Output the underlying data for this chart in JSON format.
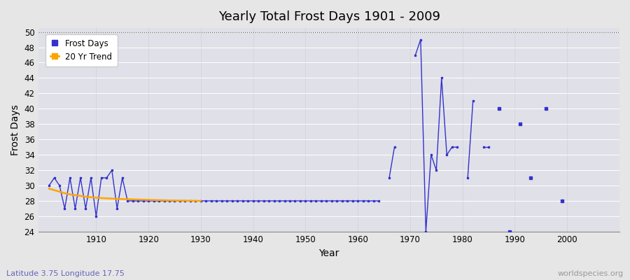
{
  "title": "Yearly Total Frost Days 1901 - 2009",
  "xlabel": "Year",
  "ylabel": "Frost Days",
  "xlim": [
    1899,
    2010
  ],
  "ylim": [
    24,
    50.5
  ],
  "yticks": [
    24,
    26,
    28,
    30,
    32,
    34,
    36,
    38,
    40,
    42,
    44,
    46,
    48,
    50
  ],
  "xticks": [
    1910,
    1920,
    1930,
    1940,
    1950,
    1960,
    1970,
    1980,
    1990,
    2000
  ],
  "background_color": "#e6e6e6",
  "plot_bg_color": "#e0e0e8",
  "grid_color": "#f0f0f0",
  "frost_color": "#3333cc",
  "trend_color": "#ffa500",
  "subtitle": "Latitude 3.75 Longitude 17.75",
  "watermark": "worldspecies.org",
  "frost_data": [
    [
      1901,
      30
    ],
    [
      1902,
      31
    ],
    [
      1903,
      30
    ],
    [
      1904,
      27
    ],
    [
      1905,
      31
    ],
    [
      1906,
      27
    ],
    [
      1907,
      31
    ],
    [
      1908,
      27
    ],
    [
      1909,
      31
    ],
    [
      1910,
      26
    ],
    [
      1911,
      31
    ],
    [
      1912,
      31
    ],
    [
      1913,
      32
    ],
    [
      1914,
      27
    ],
    [
      1915,
      31
    ],
    [
      1916,
      28
    ],
    [
      1917,
      28
    ],
    [
      1918,
      28
    ],
    [
      1919,
      28
    ],
    [
      1920,
      28
    ],
    [
      1921,
      28
    ],
    [
      1922,
      28
    ],
    [
      1923,
      28
    ],
    [
      1924,
      28
    ],
    [
      1925,
      28
    ],
    [
      1926,
      28
    ],
    [
      1927,
      28
    ],
    [
      1928,
      28
    ],
    [
      1929,
      28
    ],
    [
      1930,
      28
    ],
    [
      1931,
      28
    ],
    [
      1932,
      28
    ],
    [
      1933,
      28
    ],
    [
      1934,
      28
    ],
    [
      1935,
      28
    ],
    [
      1936,
      28
    ],
    [
      1937,
      28
    ],
    [
      1938,
      28
    ],
    [
      1939,
      28
    ],
    [
      1940,
      28
    ],
    [
      1941,
      28
    ],
    [
      1942,
      28
    ],
    [
      1943,
      28
    ],
    [
      1944,
      28
    ],
    [
      1945,
      28
    ],
    [
      1946,
      28
    ],
    [
      1947,
      28
    ],
    [
      1948,
      28
    ],
    [
      1949,
      28
    ],
    [
      1950,
      28
    ],
    [
      1951,
      28
    ],
    [
      1952,
      28
    ],
    [
      1953,
      28
    ],
    [
      1954,
      28
    ],
    [
      1955,
      28
    ],
    [
      1956,
      28
    ],
    [
      1957,
      28
    ],
    [
      1958,
      28
    ],
    [
      1959,
      28
    ],
    [
      1960,
      28
    ],
    [
      1961,
      28
    ],
    [
      1962,
      28
    ],
    [
      1963,
      28
    ],
    [
      1964,
      28
    ],
    [
      1966,
      31
    ],
    [
      1967,
      35
    ],
    [
      1971,
      47
    ],
    [
      1972,
      49
    ],
    [
      1973,
      24
    ],
    [
      1974,
      34
    ],
    [
      1975,
      32
    ],
    [
      1976,
      44
    ],
    [
      1977,
      34
    ],
    [
      1978,
      35
    ],
    [
      1979,
      35
    ],
    [
      1981,
      31
    ],
    [
      1982,
      41
    ],
    [
      1984,
      35
    ],
    [
      1985,
      35
    ],
    [
      1987,
      40
    ],
    [
      1989,
      24
    ],
    [
      1991,
      38
    ],
    [
      1993,
      31
    ],
    [
      1996,
      40
    ],
    [
      1999,
      28
    ]
  ],
  "trend_data": [
    [
      1901,
      29.6
    ],
    [
      1902,
      29.4
    ],
    [
      1903,
      29.2
    ],
    [
      1904,
      29.0
    ],
    [
      1905,
      28.85
    ],
    [
      1906,
      28.75
    ],
    [
      1907,
      28.65
    ],
    [
      1908,
      28.55
    ],
    [
      1909,
      28.48
    ],
    [
      1910,
      28.42
    ],
    [
      1911,
      28.37
    ],
    [
      1912,
      28.33
    ],
    [
      1913,
      28.3
    ],
    [
      1914,
      28.27
    ],
    [
      1915,
      28.24
    ],
    [
      1916,
      28.22
    ],
    [
      1917,
      28.2
    ],
    [
      1918,
      28.18
    ],
    [
      1919,
      28.16
    ],
    [
      1920,
      28.14
    ],
    [
      1921,
      28.12
    ],
    [
      1922,
      28.1
    ],
    [
      1923,
      28.08
    ],
    [
      1924,
      28.06
    ],
    [
      1925,
      28.05
    ],
    [
      1926,
      28.04
    ],
    [
      1927,
      28.03
    ],
    [
      1928,
      28.02
    ],
    [
      1929,
      28.01
    ],
    [
      1930,
      28.0
    ]
  ]
}
